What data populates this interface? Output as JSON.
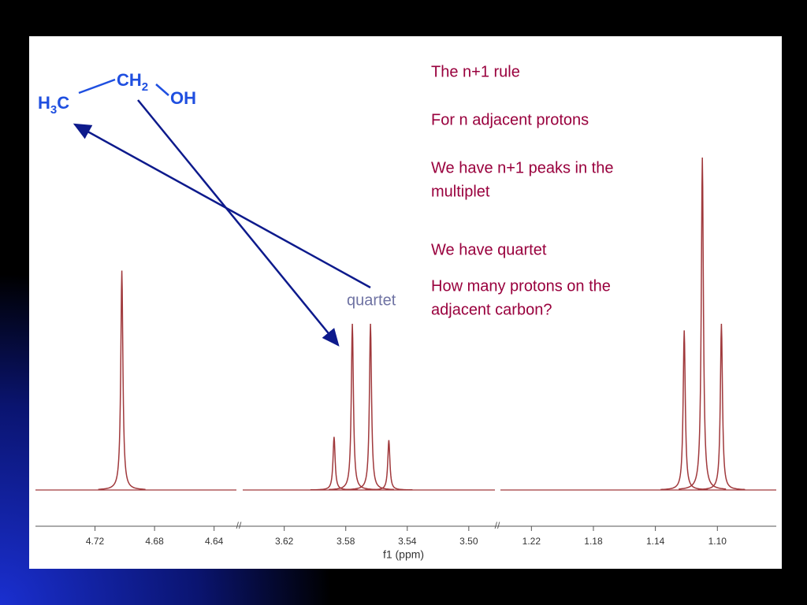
{
  "slide": {
    "notes": [
      "The n+1 rule",
      "For n adjacent protons",
      "We have n+1 peaks in the",
      "multiplet",
      "We have quartet",
      "How many protons on the",
      "adjacent carbon?"
    ],
    "label": "quartet",
    "molecule": {
      "ch3": [
        "H",
        "3",
        "C"
      ],
      "ch2": [
        "CH",
        "2"
      ],
      "oh": "OH"
    }
  },
  "axis_title": "f1 (ppm)",
  "chart_data": [
    {
      "type": "spectrum",
      "xlim": [
        4.76,
        4.625
      ],
      "ylim": [
        0,
        100
      ],
      "xticks": [
        4.72,
        4.68,
        4.64
      ],
      "x": [
        4.702
      ],
      "values": [
        66
      ],
      "color": "#a0393c"
    },
    {
      "type": "spectrum",
      "xlim": [
        3.647,
        3.483
      ],
      "ylim": [
        0,
        100
      ],
      "xticks": [
        3.62,
        3.58,
        3.54,
        {
          "value": 3.5,
          "label": "3.50"
        }
      ],
      "x": [
        3.5876,
        3.5757,
        3.5639,
        3.552
      ],
      "values": [
        16,
        50,
        50,
        15
      ],
      "color": "#a0393c"
    },
    {
      "type": "spectrum",
      "xlim": [
        1.24,
        1.062
      ],
      "ylim": [
        0,
        100
      ],
      "xticks": [
        1.22,
        1.18,
        1.14,
        {
          "value": 1.1,
          "label": "1.10"
        }
      ],
      "x": [
        1.1214,
        1.1097,
        1.0974
      ],
      "values": [
        48,
        100,
        50
      ],
      "color": "#a0393c"
    }
  ]
}
